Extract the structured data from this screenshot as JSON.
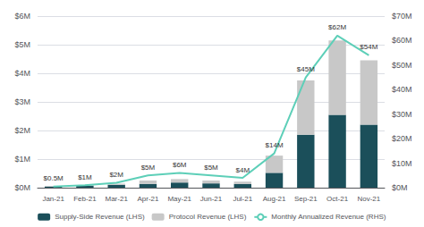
{
  "chart_data": {
    "type": "bar",
    "categories": [
      "Jan-21",
      "Feb-21",
      "Mar-21",
      "Apr-21",
      "May-21",
      "Jun-21",
      "Jul-21",
      "Aug-21",
      "Sep-21",
      "Oct-21",
      "Nov-21"
    ],
    "series": [
      {
        "name": "Supply-Side Revenue (LHS)",
        "type": "bar",
        "color": "#1b4f5a",
        "values": [
          0.04,
          0.07,
          0.1,
          0.13,
          0.18,
          0.15,
          0.13,
          0.52,
          1.85,
          2.55,
          2.2
        ]
      },
      {
        "name": "Protocol Revenue (LHS)",
        "type": "bar",
        "color": "#c8c8c8",
        "values": [
          0.01,
          0.02,
          0.04,
          0.12,
          0.12,
          0.1,
          0.08,
          0.6,
          1.9,
          2.6,
          2.25
        ]
      },
      {
        "name": "Monthly Annualized Revenue (RHS)",
        "type": "line",
        "axis": "y2",
        "color": "#5dcfb8",
        "data_labels": true,
        "values": [
          0.5,
          1.0,
          2.0,
          5.0,
          6.0,
          5.0,
          4.0,
          14.0,
          45.0,
          62.0,
          54.0
        ],
        "value_labels": [
          "$0.5M",
          "$1M",
          "$2M",
          "$5M",
          "$6M",
          "$5M",
          "$4M",
          "$14M",
          "$45M",
          "$62M",
          "$54M"
        ]
      }
    ],
    "stacked": true,
    "ylim": [
      0,
      6
    ],
    "yticks": [
      {
        "value": 0,
        "label": "$0M"
      },
      {
        "value": 1,
        "label": "$1M"
      },
      {
        "value": 2,
        "label": "$2M"
      },
      {
        "value": 3,
        "label": "$3M"
      },
      {
        "value": 4,
        "label": "$4M"
      },
      {
        "value": 5,
        "label": "$5M"
      },
      {
        "value": 6,
        "label": "$6M"
      }
    ],
    "y2lim": [
      0,
      70
    ],
    "y2ticks": [
      {
        "value": 0,
        "label": "$0M"
      },
      {
        "value": 10,
        "label": "$10M"
      },
      {
        "value": 20,
        "label": "$20M"
      },
      {
        "value": 30,
        "label": "$30M"
      },
      {
        "value": 40,
        "label": "$40M"
      },
      {
        "value": 50,
        "label": "$50M"
      },
      {
        "value": 60,
        "label": "$60M"
      },
      {
        "value": 70,
        "label": "$70M"
      }
    ],
    "grid": true,
    "legend": "bottom"
  }
}
